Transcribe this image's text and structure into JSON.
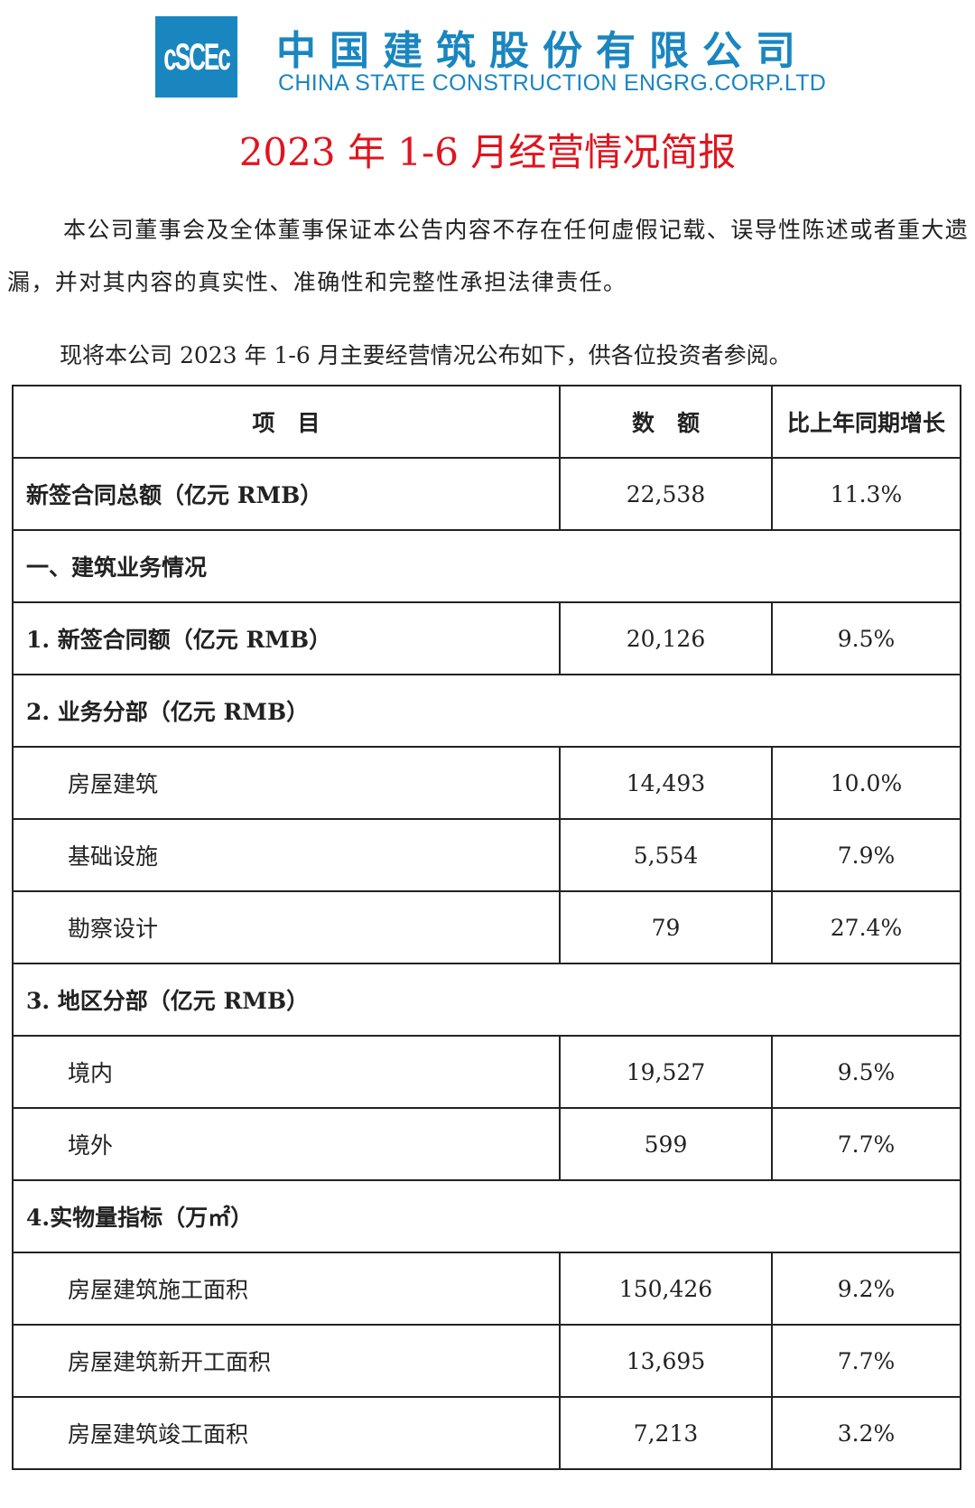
{
  "header": {
    "logo_text": "cSCEc",
    "company_cn": "中国建筑股份有限公司",
    "company_en": "CHINA STATE CONSTRUCTION ENGRG.CORP.LTD",
    "brand_color": "#1a86c0"
  },
  "title": "2023 年 1-6 月经营情况简报",
  "title_color": "#e0141e",
  "paragraphs": [
    "本公司董事会及全体董事保证本公告内容不存在任何虚假记载、误导性陈述或者重大遗漏，并对其内容的真实性、准确性和完整性承担法律责任。",
    "现将本公司 2023 年 1-6 月主要经营情况公布如下，供各位投资者参阅。"
  ],
  "table": {
    "headers": [
      "项　目",
      "数　额",
      "比上年同期增长"
    ],
    "rows": [
      {
        "label": "新签合同总额（亿元 RMB）",
        "value": "22,538",
        "growth": "11.3%"
      },
      {
        "label": "一、建筑业务情况"
      },
      {
        "label": "1.  新签合同额（亿元 RMB）",
        "value": "20,126",
        "growth": "9.5%"
      },
      {
        "label": "2.  业务分部（亿元 RMB）"
      },
      {
        "label": "房屋建筑",
        "value": "14,493",
        "growth": "10.0%"
      },
      {
        "label": "基础设施",
        "value": "5,554",
        "growth": "7.9%"
      },
      {
        "label": "勘察设计",
        "value": "79",
        "growth": "27.4%"
      },
      {
        "label": "3.  地区分部（亿元 RMB）"
      },
      {
        "label": "境内",
        "value": "19,527",
        "growth": "9.5%"
      },
      {
        "label": "境外",
        "value": "599",
        "growth": "7.7%"
      },
      {
        "label": "4.实物量指标（万㎡）"
      },
      {
        "label": "房屋建筑施工面积",
        "value": "150,426",
        "growth": "9.2%"
      },
      {
        "label": "房屋建筑新开工面积",
        "value": "13,695",
        "growth": "7.7%"
      },
      {
        "label": "房屋建筑竣工面积",
        "value": "7,213",
        "growth": "3.2%"
      }
    ]
  }
}
